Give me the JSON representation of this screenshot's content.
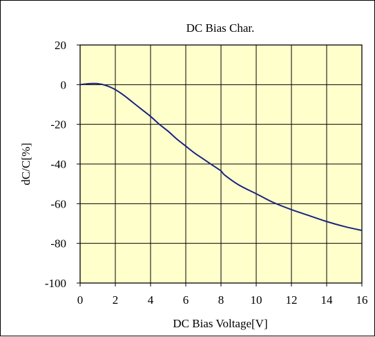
{
  "chart_data": {
    "type": "line",
    "title": "DC Bias Char.",
    "xlabel": "DC Bias Voltage[V]",
    "ylabel": "dC/C[%]",
    "xlim": [
      0,
      16
    ],
    "ylim": [
      -100,
      20
    ],
    "xticks": [
      0,
      2,
      4,
      6,
      8,
      10,
      12,
      14,
      16
    ],
    "yticks": [
      20,
      0,
      -20,
      -40,
      -60,
      -80,
      -100
    ],
    "grid": true,
    "legend": "none",
    "series": [
      {
        "color": "#1a237e",
        "x": [
          0,
          0.5,
          1.0,
          1.5,
          2.0,
          2.5,
          3.0,
          3.5,
          4.0,
          4.5,
          5.0,
          5.5,
          6.0,
          6.5,
          7.0,
          7.5,
          8.0,
          8.2,
          9.0,
          10.0,
          11.0,
          12.0,
          13.0,
          14.0,
          15.0,
          16.0
        ],
        "y": [
          0,
          0.5,
          0.5,
          -0.5,
          -2.5,
          -5.5,
          -9,
          -12.5,
          -16,
          -20,
          -23.5,
          -27.5,
          -31,
          -34.5,
          -37.5,
          -40.5,
          -43.5,
          -45.5,
          -50.5,
          -55,
          -59.5,
          -63,
          -66,
          -69,
          -71.5,
          -73.5
        ]
      }
    ],
    "colors": {
      "plot_background": "#ffffcc",
      "grid": "#000000",
      "line": "#1a237e"
    }
  }
}
